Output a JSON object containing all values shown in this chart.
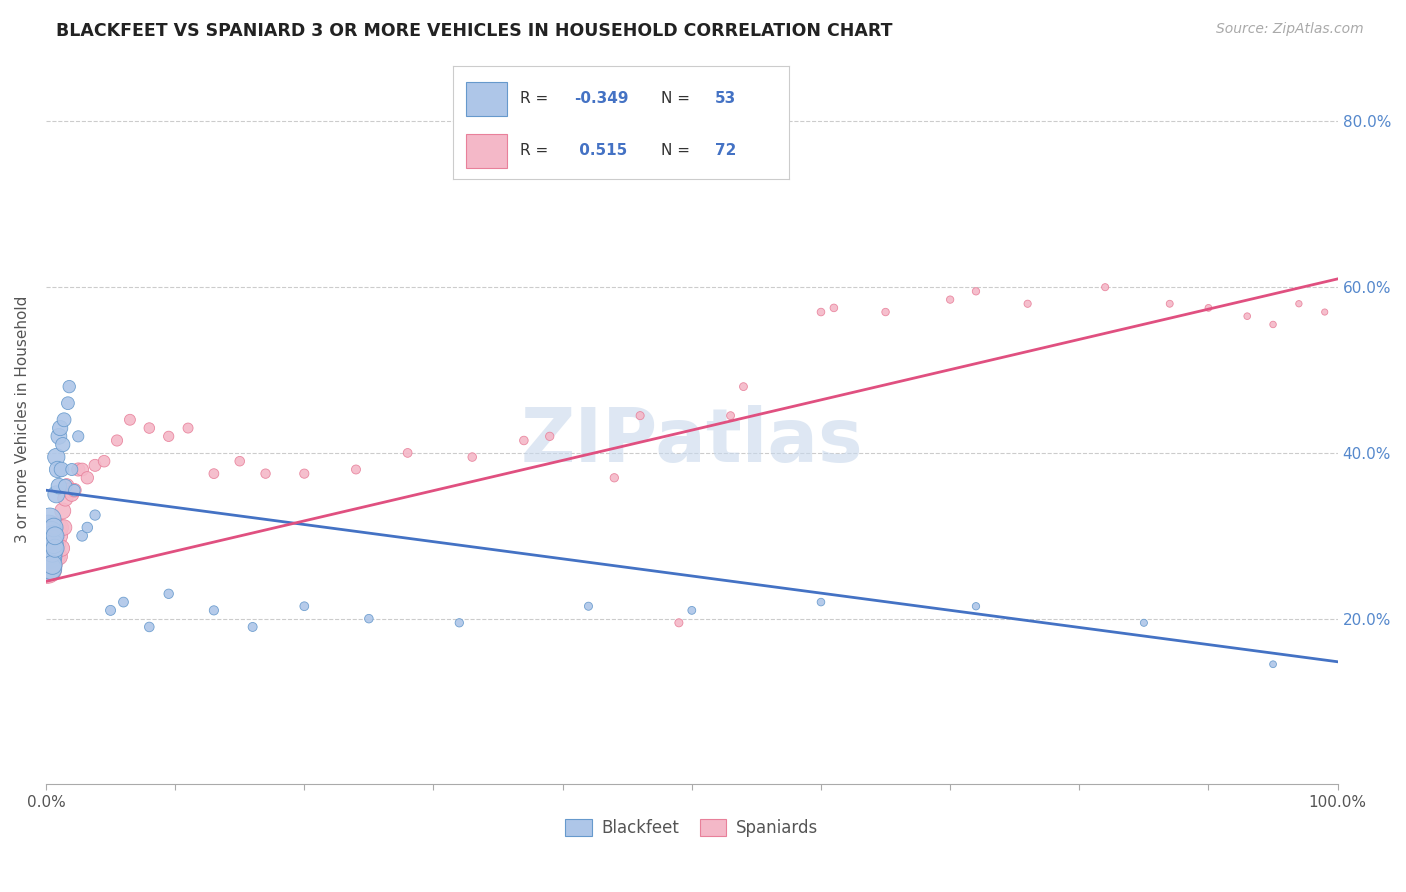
{
  "title": "BLACKFEET VS SPANIARD 3 OR MORE VEHICLES IN HOUSEHOLD CORRELATION CHART",
  "source": "Source: ZipAtlas.com",
  "ylabel": "3 or more Vehicles in Household",
  "watermark": "ZIPatlas",
  "blackfeet_R": -0.349,
  "blackfeet_N": 53,
  "spaniard_R": 0.515,
  "spaniard_N": 72,
  "blackfeet_color": "#aec6e8",
  "blackfeet_edge": "#6699cc",
  "blackfeet_line": "#4472c4",
  "spaniard_color": "#f4b8c8",
  "spaniard_edge": "#e8809a",
  "spaniard_line": "#e05080",
  "bf_line_x0": 0.0,
  "bf_line_y0": 0.355,
  "bf_line_x1": 1.0,
  "bf_line_y1": 0.148,
  "sp_line_x0": 0.0,
  "sp_line_y0": 0.245,
  "sp_line_x1": 1.0,
  "sp_line_y1": 0.61,
  "xmin": 0.0,
  "xmax": 1.0,
  "ymin": 0.0,
  "ymax": 0.88,
  "bf_x": [
    0.001,
    0.001,
    0.001,
    0.002,
    0.002,
    0.002,
    0.002,
    0.003,
    0.003,
    0.003,
    0.004,
    0.004,
    0.004,
    0.005,
    0.005,
    0.005,
    0.006,
    0.006,
    0.007,
    0.007,
    0.008,
    0.008,
    0.009,
    0.01,
    0.01,
    0.011,
    0.012,
    0.013,
    0.014,
    0.015,
    0.017,
    0.018,
    0.02,
    0.022,
    0.025,
    0.028,
    0.032,
    0.038,
    0.05,
    0.06,
    0.08,
    0.095,
    0.13,
    0.16,
    0.2,
    0.25,
    0.32,
    0.42,
    0.5,
    0.6,
    0.72,
    0.85,
    0.95
  ],
  "bf_y": [
    0.285,
    0.305,
    0.27,
    0.3,
    0.28,
    0.31,
    0.26,
    0.275,
    0.295,
    0.32,
    0.275,
    0.26,
    0.305,
    0.3,
    0.28,
    0.265,
    0.29,
    0.31,
    0.285,
    0.3,
    0.395,
    0.35,
    0.38,
    0.42,
    0.36,
    0.43,
    0.38,
    0.41,
    0.44,
    0.36,
    0.46,
    0.48,
    0.38,
    0.355,
    0.42,
    0.3,
    0.31,
    0.325,
    0.21,
    0.22,
    0.19,
    0.23,
    0.21,
    0.19,
    0.215,
    0.2,
    0.195,
    0.215,
    0.21,
    0.22,
    0.215,
    0.195,
    0.145
  ],
  "bf_sizes": [
    500,
    450,
    400,
    380,
    350,
    320,
    300,
    280,
    270,
    260,
    240,
    230,
    220,
    210,
    200,
    190,
    185,
    180,
    170,
    165,
    155,
    150,
    140,
    130,
    125,
    120,
    110,
    105,
    100,
    95,
    85,
    80,
    75,
    70,
    65,
    60,
    58,
    55,
    52,
    50,
    48,
    46,
    44,
    42,
    40,
    38,
    36,
    34,
    32,
    30,
    28,
    26,
    24
  ],
  "sp_x": [
    0.001,
    0.001,
    0.001,
    0.001,
    0.002,
    0.002,
    0.002,
    0.002,
    0.003,
    0.003,
    0.003,
    0.004,
    0.004,
    0.004,
    0.005,
    0.005,
    0.005,
    0.006,
    0.006,
    0.007,
    0.007,
    0.008,
    0.008,
    0.009,
    0.01,
    0.01,
    0.011,
    0.012,
    0.013,
    0.014,
    0.015,
    0.016,
    0.018,
    0.02,
    0.022,
    0.025,
    0.028,
    0.032,
    0.038,
    0.045,
    0.055,
    0.065,
    0.08,
    0.095,
    0.11,
    0.13,
    0.15,
    0.17,
    0.2,
    0.24,
    0.28,
    0.33,
    0.39,
    0.46,
    0.53,
    0.6,
    0.65,
    0.7,
    0.76,
    0.82,
    0.87,
    0.9,
    0.93,
    0.95,
    0.97,
    0.99,
    0.54,
    0.72,
    0.61,
    0.44,
    0.37,
    0.49
  ],
  "sp_y": [
    0.3,
    0.27,
    0.29,
    0.26,
    0.285,
    0.305,
    0.275,
    0.265,
    0.29,
    0.31,
    0.275,
    0.285,
    0.3,
    0.265,
    0.295,
    0.275,
    0.285,
    0.28,
    0.295,
    0.275,
    0.3,
    0.29,
    0.275,
    0.31,
    0.3,
    0.275,
    0.31,
    0.285,
    0.33,
    0.31,
    0.345,
    0.36,
    0.355,
    0.35,
    0.355,
    0.38,
    0.38,
    0.37,
    0.385,
    0.39,
    0.415,
    0.44,
    0.43,
    0.42,
    0.43,
    0.375,
    0.39,
    0.375,
    0.375,
    0.38,
    0.4,
    0.395,
    0.42,
    0.445,
    0.445,
    0.57,
    0.57,
    0.585,
    0.58,
    0.6,
    0.58,
    0.575,
    0.565,
    0.555,
    0.58,
    0.57,
    0.48,
    0.595,
    0.575,
    0.37,
    0.415,
    0.195
  ],
  "sp_sizes": [
    500,
    470,
    450,
    430,
    400,
    380,
    360,
    340,
    320,
    300,
    285,
    270,
    260,
    250,
    240,
    230,
    220,
    210,
    200,
    195,
    185,
    178,
    172,
    165,
    158,
    150,
    145,
    138,
    132,
    125,
    120,
    115,
    108,
    102,
    96,
    90,
    85,
    80,
    75,
    70,
    65,
    62,
    58,
    55,
    52,
    50,
    48,
    46,
    44,
    42,
    40,
    38,
    36,
    34,
    32,
    30,
    29,
    28,
    27,
    26,
    25,
    24,
    23,
    22,
    21,
    20,
    32,
    28,
    30,
    36,
    38,
    34
  ]
}
